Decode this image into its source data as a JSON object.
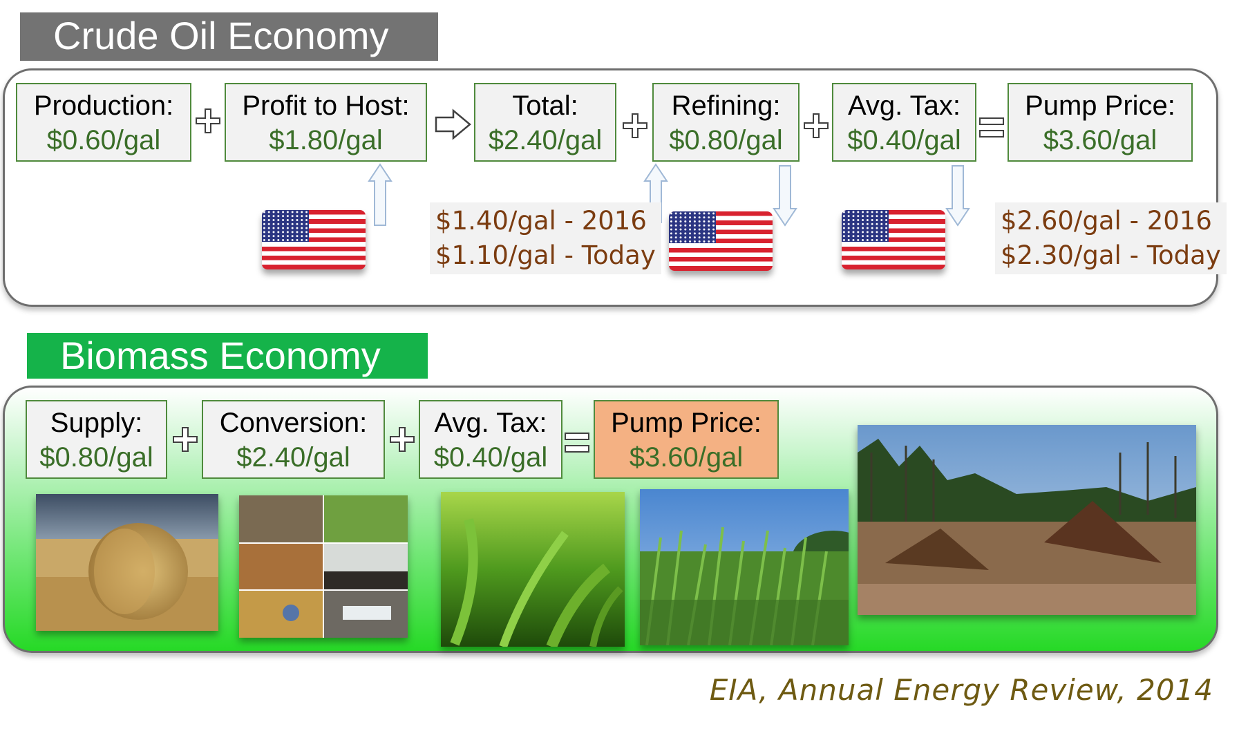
{
  "crude": {
    "title": "Crude Oil Economy",
    "production": {
      "label": "Production:",
      "value": "$0.60/gal"
    },
    "profit": {
      "label": "Profit to Host:",
      "value": "$1.80/gal"
    },
    "total": {
      "label": "Total:",
      "value": "$2.40/gal"
    },
    "refining": {
      "label": "Refining:",
      "value": "$0.80/gal"
    },
    "tax": {
      "label": "Avg. Tax:",
      "value": "$0.40/gal"
    },
    "pump": {
      "label": "Pump Price:",
      "value": "$3.60/gal"
    },
    "note1": {
      "line1": "$1.40/gal - 2016",
      "line2": "$1.10/gal - Today"
    },
    "note2": {
      "line1": "$2.60/gal - 2016",
      "line2": "$2.30/gal - Today"
    }
  },
  "biomass": {
    "title": "Biomass Economy",
    "supply": {
      "label": "Supply:",
      "value": "$0.80/gal"
    },
    "conversion": {
      "label": "Conversion:",
      "value": "$2.40/gal"
    },
    "tax": {
      "label": "Avg. Tax:",
      "value": "$0.40/gal"
    },
    "pump": {
      "label": "Pump Price:",
      "value": "$3.60/gal"
    }
  },
  "source": "EIA, Annual Energy Review, 2014",
  "colors": {
    "crude_banner": "#737373",
    "bio_banner": "#15b34a",
    "box_border": "#4f8a3c",
    "value_text": "#3a6e28",
    "note_text": "#7b3c10",
    "pump_highlight": "#f4b183"
  }
}
